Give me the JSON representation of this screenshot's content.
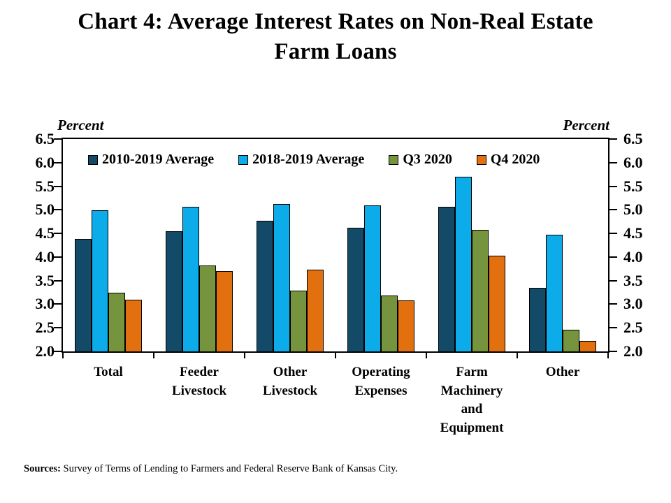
{
  "title": "Chart 4: Average Interest Rates on Non-Real Estate\nFarm Loans",
  "axis_unit_left": "Percent",
  "axis_unit_right": "Percent",
  "sources_label": "Sources:",
  "sources_text": " Survey of Terms of Lending to Farmers and Federal Reserve Bank of Kansas City.",
  "chart_data": {
    "type": "bar",
    "title": "Chart 4: Average Interest Rates on Non-Real Estate Farm Loans",
    "ylabel": "Percent",
    "ylim": [
      2.0,
      6.5
    ],
    "ytick_step": 0.5,
    "yticks": [
      "2.0",
      "2.5",
      "3.0",
      "3.5",
      "4.0",
      "4.5",
      "5.0",
      "5.5",
      "6.0",
      "6.5"
    ],
    "grid": false,
    "legend_position": "top-inside",
    "categories": [
      "Total",
      "Feeder\nLivestock",
      "Other\nLivestock",
      "Operating\nExpenses",
      "Farm\nMachinery\nand\nEquipment",
      "Other"
    ],
    "series": [
      {
        "name": "2010-2019 Average",
        "color": "#134A68",
        "values": [
          4.38,
          4.55,
          4.77,
          4.62,
          5.06,
          3.35
        ]
      },
      {
        "name": "2018-2019 Average",
        "color": "#0BACE9",
        "values": [
          4.99,
          5.06,
          5.13,
          5.09,
          5.7,
          4.47
        ]
      },
      {
        "name": "Q3 2020",
        "color": "#76933D",
        "values": [
          3.25,
          3.82,
          3.29,
          3.19,
          4.57,
          2.46
        ]
      },
      {
        "name": "Q4 2020",
        "color": "#E2700F",
        "values": [
          3.09,
          3.7,
          3.73,
          3.08,
          4.03,
          2.22
        ]
      }
    ]
  }
}
